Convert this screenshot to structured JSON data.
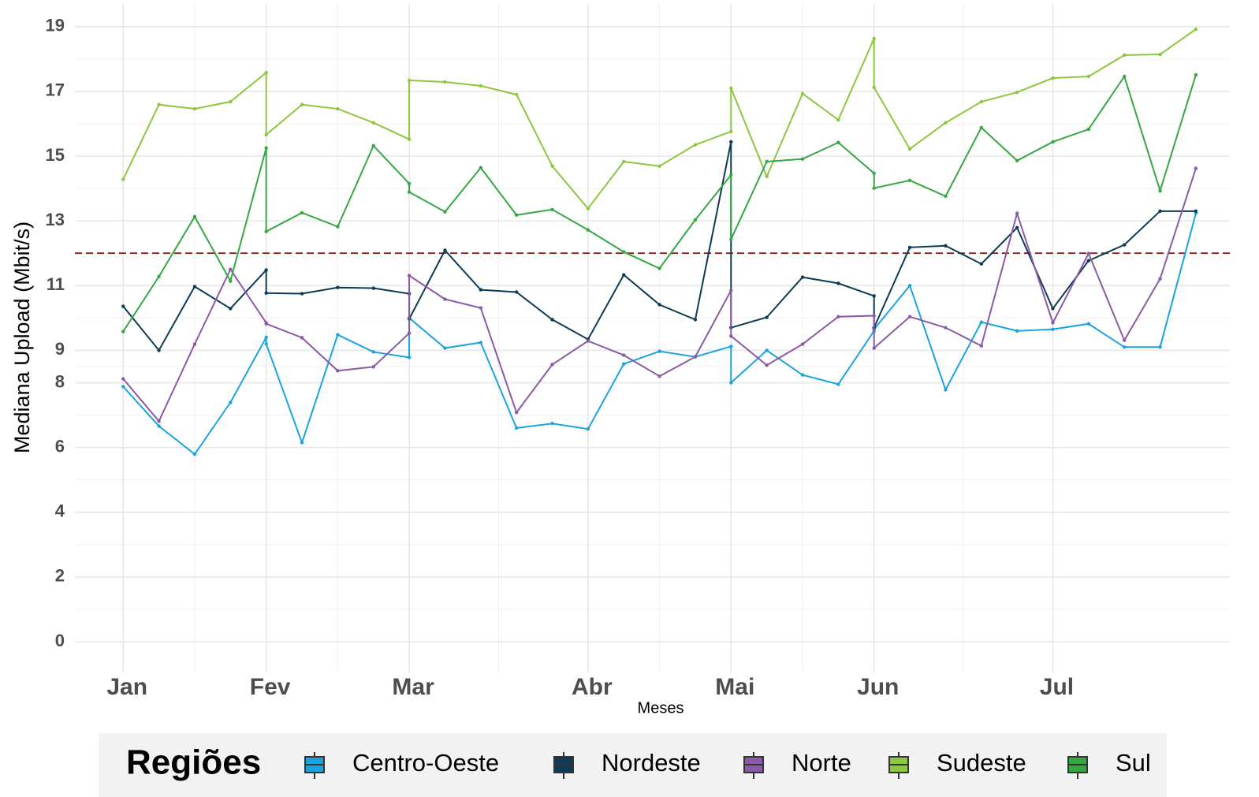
{
  "chart_data": {
    "type": "line",
    "xlabel": "Meses",
    "ylabel": "Mediana Upload (Mbit/s)",
    "legend_title": "Regiões",
    "legend_position": "bottom",
    "x": [
      0,
      1,
      2,
      3,
      4,
      4,
      5,
      6,
      7,
      8,
      8,
      9,
      10,
      11,
      12,
      13,
      14,
      15,
      16,
      17,
      17,
      18,
      19,
      20,
      21,
      21,
      22,
      23,
      24,
      25,
      26,
      27,
      28,
      29,
      30
    ],
    "xlim": [
      -1.35,
      30.95
    ],
    "xticks": [
      {
        "value": 0,
        "label": "Jan"
      },
      {
        "value": 4,
        "label": "Fev"
      },
      {
        "value": 8,
        "label": "Mar"
      },
      {
        "value": 13,
        "label": "Abr"
      },
      {
        "value": 17,
        "label": "Mai"
      },
      {
        "value": 21,
        "label": "Jun"
      },
      {
        "value": 26,
        "label": "Jul"
      }
    ],
    "ylim": [
      -0.95,
      19.7
    ],
    "yticks": [
      0,
      2,
      4,
      6,
      8,
      9,
      11,
      13,
      15,
      17,
      19
    ],
    "grid": true,
    "hline": 12,
    "hline_color": "#8b1a1a",
    "series": [
      {
        "name": "Centro-Oeste",
        "color": "#1ba3e0",
        "values": [
          7.88,
          6.66,
          5.79,
          7.39,
          9.4,
          9.2,
          6.15,
          9.48,
          8.95,
          8.78,
          10.0,
          9.07,
          9.24,
          6.6,
          6.74,
          6.57,
          8.58,
          8.97,
          8.8,
          9.12,
          8.0,
          9.0,
          8.24,
          7.95,
          9.6,
          9.65,
          11.0,
          7.78,
          9.87,
          9.6,
          9.65,
          9.82,
          9.1,
          9.1,
          13.23
        ]
      },
      {
        "name": "Nordeste",
        "color": "#0d3b53",
        "values": [
          10.36,
          9.0,
          10.97,
          10.29,
          11.48,
          10.77,
          10.75,
          10.94,
          10.92,
          10.75,
          9.97,
          12.09,
          10.87,
          10.8,
          9.95,
          9.34,
          11.33,
          10.41,
          9.95,
          15.44,
          9.7,
          10.02,
          11.26,
          11.07,
          10.68,
          9.7,
          12.18,
          12.23,
          11.67,
          12.79,
          10.29,
          11.77,
          12.26,
          13.3,
          13.3
        ]
      },
      {
        "name": "Norte",
        "color": "#8b5aa6",
        "values": [
          8.12,
          6.81,
          9.19,
          11.5,
          9.85,
          9.82,
          9.39,
          8.37,
          8.49,
          9.53,
          11.31,
          10.58,
          10.31,
          7.08,
          8.56,
          9.29,
          8.85,
          8.2,
          8.8,
          10.85,
          9.44,
          8.54,
          9.19,
          10.04,
          10.07,
          9.07,
          10.04,
          9.7,
          9.14,
          13.23,
          9.85,
          11.99,
          9.31,
          11.21,
          14.62
        ]
      },
      {
        "name": "Sudeste",
        "color": "#8dc63f",
        "values": [
          14.28,
          16.59,
          16.46,
          16.68,
          17.58,
          15.66,
          16.59,
          16.46,
          16.03,
          15.52,
          17.34,
          17.29,
          17.17,
          16.9,
          14.69,
          13.38,
          14.83,
          14.69,
          15.35,
          15.76,
          17.1,
          14.37,
          16.93,
          16.12,
          18.63,
          17.12,
          15.22,
          16.03,
          16.68,
          16.97,
          17.41,
          17.46,
          18.12,
          18.14,
          18.92
        ]
      },
      {
        "name": "Sul",
        "color": "#35a843",
        "values": [
          9.58,
          11.28,
          13.13,
          11.14,
          15.25,
          12.67,
          13.25,
          12.82,
          15.32,
          14.15,
          13.89,
          13.28,
          14.64,
          13.18,
          13.35,
          12.72,
          12.04,
          11.53,
          13.03,
          14.42,
          12.43,
          14.83,
          14.91,
          15.42,
          14.47,
          14.01,
          14.25,
          13.76,
          15.88,
          14.86,
          15.44,
          15.83,
          17.46,
          13.93,
          17.51
        ]
      }
    ]
  }
}
